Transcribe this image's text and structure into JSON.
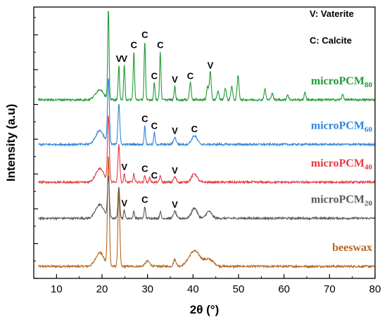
{
  "chart_data": {
    "type": "line",
    "xlabel": "2θ (°)",
    "ylabel": "Intensity (a.u)",
    "xlim": [
      5,
      80
    ],
    "xticks": [
      10,
      20,
      30,
      40,
      50,
      60,
      70,
      80
    ],
    "y_ticks_labeled": false,
    "grid": false,
    "legend_notes": [
      "V: Vaterite",
      "C: Calcite"
    ],
    "series": [
      {
        "name": "beeswax",
        "label_main": "beeswax",
        "label_sub": "",
        "color": "#B5651D",
        "baseline": 0.0,
        "peaks": [
          [
            19.5,
            0.4,
            0.9
          ],
          [
            21.4,
            3.2,
            0.2
          ],
          [
            23.7,
            2.2,
            0.2
          ],
          [
            30.0,
            0.15,
            0.5
          ],
          [
            36.0,
            0.2,
            0.3
          ],
          [
            40.3,
            0.45,
            1.2
          ],
          [
            43.5,
            0.2,
            1.0
          ]
        ]
      },
      {
        "name": "microPCM20",
        "label_main": "microPCM",
        "label_sub": "20",
        "color": "#595959",
        "baseline": 1.4,
        "peaks": [
          [
            19.5,
            0.4,
            0.9
          ],
          [
            21.4,
            1.2,
            0.2
          ],
          [
            23.7,
            0.9,
            0.2
          ],
          [
            24.9,
            0.25,
            0.15
          ],
          [
            27.0,
            0.2,
            0.15
          ],
          [
            29.4,
            0.35,
            0.15
          ],
          [
            32.8,
            0.2,
            0.15
          ],
          [
            36.0,
            0.2,
            0.3
          ],
          [
            40.3,
            0.3,
            0.6
          ],
          [
            43.5,
            0.2,
            0.6
          ]
        ]
      },
      {
        "name": "microPCM40",
        "label_main": "microPCM",
        "label_sub": "40",
        "color": "#E8393F",
        "baseline": 2.45,
        "peaks": [
          [
            19.5,
            0.4,
            0.9
          ],
          [
            21.4,
            1.9,
            0.2
          ],
          [
            23.7,
            1.1,
            0.2
          ],
          [
            24.9,
            0.25,
            0.15
          ],
          [
            27.0,
            0.25,
            0.15
          ],
          [
            29.4,
            0.2,
            0.15
          ],
          [
            30.5,
            0.15,
            0.15
          ],
          [
            32.8,
            0.2,
            0.15
          ],
          [
            36.0,
            0.15,
            0.3
          ],
          [
            40.3,
            0.25,
            0.6
          ]
        ]
      },
      {
        "name": "microPCM60",
        "label_main": "microPCM",
        "label_sub": "60",
        "color": "#2E86DE",
        "baseline": 3.55,
        "peaks": [
          [
            19.5,
            0.4,
            0.9
          ],
          [
            21.4,
            1.9,
            0.2
          ],
          [
            23.7,
            1.2,
            0.2
          ],
          [
            29.4,
            0.55,
            0.15
          ],
          [
            31.5,
            0.35,
            0.15
          ],
          [
            36.0,
            0.2,
            0.3
          ],
          [
            40.3,
            0.25,
            0.6
          ]
        ]
      },
      {
        "name": "microPCM80",
        "label_main": "microPCM",
        "label_sub": "80",
        "color": "#1F9A35",
        "baseline": 4.85,
        "peaks": [
          [
            19.5,
            0.3,
            0.9
          ],
          [
            21.4,
            2.6,
            0.15
          ],
          [
            23.7,
            1.0,
            0.15
          ],
          [
            24.9,
            1.0,
            0.15
          ],
          [
            27.0,
            1.4,
            0.15
          ],
          [
            29.4,
            1.7,
            0.15
          ],
          [
            31.5,
            0.5,
            0.15
          ],
          [
            32.8,
            1.4,
            0.15
          ],
          [
            36.0,
            0.4,
            0.15
          ],
          [
            39.4,
            0.5,
            0.2
          ],
          [
            43.2,
            0.4,
            0.2
          ],
          [
            43.8,
            0.8,
            0.2
          ],
          [
            45.5,
            0.25,
            0.2
          ],
          [
            47.1,
            0.35,
            0.2
          ],
          [
            48.5,
            0.4,
            0.2
          ],
          [
            49.9,
            0.7,
            0.2
          ],
          [
            55.8,
            0.3,
            0.2
          ],
          [
            57.4,
            0.2,
            0.2
          ],
          [
            60.8,
            0.15,
            0.2
          ],
          [
            64.6,
            0.2,
            0.2
          ],
          [
            72.9,
            0.15,
            0.2
          ]
        ]
      }
    ],
    "peak_annotations": [
      {
        "text": "V",
        "x": 23.7,
        "series": 4
      },
      {
        "text": "V",
        "x": 24.9,
        "series": 4
      },
      {
        "text": "C",
        "x": 27.0,
        "series": 4
      },
      {
        "text": "C",
        "x": 29.4,
        "series": 4
      },
      {
        "text": "C",
        "x": 31.5,
        "series": 4
      },
      {
        "text": "C",
        "x": 32.8,
        "series": 4
      },
      {
        "text": "V",
        "x": 36.0,
        "series": 4
      },
      {
        "text": "C",
        "x": 39.4,
        "series": 4
      },
      {
        "text": "V",
        "x": 43.8,
        "series": 4
      },
      {
        "text": "C",
        "x": 29.4,
        "series": 3
      },
      {
        "text": "C",
        "x": 31.5,
        "series": 3
      },
      {
        "text": "V",
        "x": 36.0,
        "series": 3
      },
      {
        "text": "C",
        "x": 40.3,
        "series": 3
      },
      {
        "text": "V",
        "x": 24.9,
        "series": 2
      },
      {
        "text": "C",
        "x": 29.4,
        "series": 2
      },
      {
        "text": "C",
        "x": 31.5,
        "series": 2
      },
      {
        "text": "V",
        "x": 36.0,
        "series": 2
      },
      {
        "text": "V",
        "x": 24.9,
        "series": 1
      },
      {
        "text": "C",
        "x": 29.4,
        "series": 1
      },
      {
        "text": "V",
        "x": 36.0,
        "series": 1
      }
    ]
  }
}
